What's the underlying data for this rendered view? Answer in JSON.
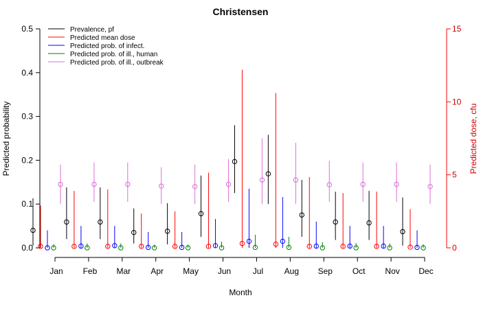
{
  "chart_data": {
    "type": "scatter",
    "title": "Christensen",
    "xlabel": "Month",
    "ylabel": "Predicted probability",
    "ylabel_right": "Predicted dose, cfu",
    "categories": [
      "Jan",
      "Feb",
      "Mar",
      "Apr",
      "May",
      "Jun",
      "Jul",
      "Aug",
      "Sep",
      "Oct",
      "Nov",
      "Dec"
    ],
    "ylim": [
      0,
      0.5
    ],
    "yticks": [
      0.0,
      0.1,
      0.2,
      0.3,
      0.4,
      0.5
    ],
    "ytick_labels": [
      "0.0",
      "0.1",
      "0.2",
      "0.3",
      "0.4",
      "0.5"
    ],
    "ylim_right": [
      0,
      15
    ],
    "yticks_right": [
      0,
      5,
      10,
      15
    ],
    "ytick_labels_right": [
      "0",
      "5",
      "10",
      "15"
    ],
    "grid": false,
    "legend_position": "top-left",
    "series": [
      {
        "name": "Prevalence, pf",
        "color": "#000000",
        "axis": "left",
        "values": [
          0.04,
          0.059,
          0.059,
          0.035,
          0.038,
          0.078,
          0.197,
          0.169,
          0.075,
          0.059,
          0.057,
          0.037
        ],
        "lower": [
          0.005,
          0.02,
          0.02,
          0.01,
          0.008,
          0.025,
          0.125,
          0.1,
          0.025,
          0.018,
          0.018,
          0.005
        ],
        "upper": [
          0.113,
          0.138,
          0.138,
          0.09,
          0.102,
          0.165,
          0.28,
          0.258,
          0.155,
          0.128,
          0.13,
          0.115
        ]
      },
      {
        "name": "Predicted mean dose",
        "color": "#ff0000",
        "axis": "right",
        "values": [
          0.1,
          0.1,
          0.1,
          0.1,
          0.1,
          0.1,
          0.3,
          0.25,
          0.1,
          0.1,
          0.1,
          0.05
        ],
        "lower": [
          0,
          0,
          0,
          0,
          0,
          0,
          0,
          0,
          0,
          0,
          0,
          0
        ],
        "upper": [
          2.9,
          3.9,
          4.0,
          2.35,
          2.5,
          5.15,
          12.2,
          10.6,
          4.85,
          3.75,
          3.85,
          2.65
        ]
      },
      {
        "name": "Predicted prob. of infect.",
        "color": "#0000ff",
        "axis": "left",
        "values": [
          0.0,
          0.004,
          0.005,
          0.001,
          0.001,
          0.005,
          0.015,
          0.015,
          0.004,
          0.004,
          0.004,
          0.001
        ],
        "lower": [
          0,
          0,
          0,
          0,
          0,
          0,
          0,
          0,
          0,
          0,
          0,
          0
        ],
        "upper": [
          0.04,
          0.05,
          0.05,
          0.036,
          0.036,
          0.066,
          0.135,
          0.116,
          0.06,
          0.05,
          0.05,
          0.04
        ]
      },
      {
        "name": "Predicted prob. of ill., human",
        "color": "#008000",
        "axis": "left",
        "values": [
          0.0,
          0.0,
          0.0,
          0.0,
          0.0,
          0.0,
          0.001,
          0.001,
          0.0,
          0.0,
          0.0,
          0.0
        ],
        "lower": [
          0,
          0,
          0,
          0,
          0,
          0,
          0,
          0,
          0,
          0,
          0,
          0
        ],
        "upper": [
          0.008,
          0.01,
          0.01,
          0.007,
          0.007,
          0.014,
          0.03,
          0.025,
          0.013,
          0.011,
          0.01,
          0.008
        ]
      },
      {
        "name": "Predicted prob. of ill., outbreak",
        "color": "#da70d6",
        "axis": "left",
        "values": [
          0.145,
          0.145,
          0.145,
          0.141,
          0.14,
          0.145,
          0.155,
          0.155,
          0.144,
          0.145,
          0.145,
          0.14
        ],
        "lower": [
          0.1,
          0.105,
          0.105,
          0.1,
          0.1,
          0.105,
          0.1,
          0.1,
          0.105,
          0.105,
          0.105,
          0.1
        ],
        "upper": [
          0.19,
          0.195,
          0.195,
          0.184,
          0.19,
          0.203,
          0.25,
          0.24,
          0.199,
          0.195,
          0.195,
          0.19
        ]
      }
    ]
  }
}
